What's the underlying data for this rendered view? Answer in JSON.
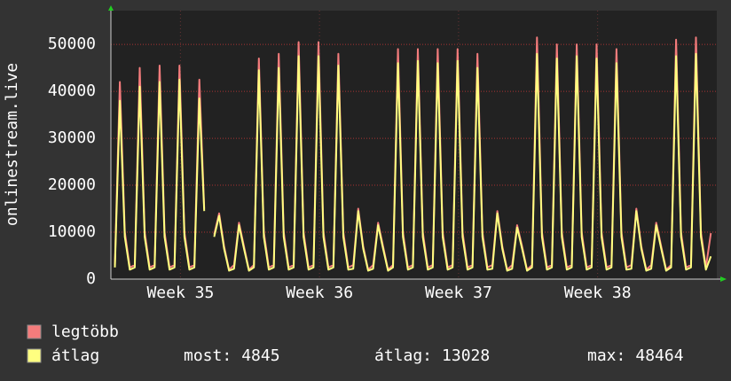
{
  "chart_data": {
    "type": "line",
    "y_label": "onlinestream.live",
    "xlim": [
      0,
      30.5
    ],
    "xticks": [
      {
        "value": 3.5,
        "label": "Week 35"
      },
      {
        "value": 10.5,
        "label": "Week 36"
      },
      {
        "value": 17.5,
        "label": "Week 37"
      },
      {
        "value": 24.5,
        "label": "Week 38"
      }
    ],
    "ylim": [
      0,
      57200
    ],
    "yticks": [
      0,
      10000,
      20000,
      30000,
      40000,
      50000
    ],
    "grid": true,
    "x": [
      0.2,
      0.45,
      0.7,
      0.95,
      1.2,
      1.45,
      1.7,
      1.95,
      2.2,
      2.45,
      2.7,
      2.95,
      3.2,
      3.45,
      3.7,
      3.95,
      4.2,
      4.45,
      4.7,
      4.95,
      5.2,
      5.45,
      5.7,
      5.95,
      6.2,
      6.45,
      6.7,
      6.95,
      7.2,
      7.45,
      7.7,
      7.95,
      8.2,
      8.45,
      8.7,
      8.95,
      9.2,
      9.45,
      9.7,
      9.95,
      10.2,
      10.45,
      10.7,
      10.95,
      11.2,
      11.45,
      11.7,
      11.95,
      12.2,
      12.45,
      12.7,
      12.95,
      13.2,
      13.45,
      13.7,
      13.95,
      14.2,
      14.45,
      14.7,
      14.95,
      15.2,
      15.45,
      15.7,
      15.95,
      16.2,
      16.45,
      16.7,
      16.95,
      17.2,
      17.45,
      17.7,
      17.95,
      18.2,
      18.45,
      18.7,
      18.95,
      19.2,
      19.45,
      19.7,
      19.95,
      20.2,
      20.45,
      20.7,
      20.95,
      21.2,
      21.45,
      21.7,
      21.95,
      22.2,
      22.45,
      22.7,
      22.95,
      23.2,
      23.45,
      23.7,
      23.95,
      24.2,
      24.45,
      24.7,
      24.95,
      25.2,
      25.45,
      25.7,
      25.95,
      26.2,
      26.45,
      26.7,
      26.95,
      27.2,
      27.45,
      27.7,
      27.95,
      28.2,
      28.45,
      28.7,
      28.95,
      29.2,
      29.45,
      29.7,
      29.95,
      30.2
    ],
    "series": [
      {
        "name": "legtöbb",
        "color": "#f47c7c",
        "values": [
          3000,
          42000,
          10000,
          2500,
          3000,
          45000,
          10000,
          2500,
          3000,
          45500,
          10000,
          2500,
          3000,
          45500,
          10000,
          2500,
          3000,
          42500,
          15000,
          null,
          9500,
          14000,
          7000,
          2000,
          3000,
          12000,
          7000,
          2000,
          3000,
          47000,
          10000,
          2500,
          3000,
          48000,
          10000,
          2500,
          3000,
          50500,
          10000,
          2500,
          3000,
          50500,
          10000,
          2500,
          3000,
          48000,
          10000,
          2500,
          3000,
          15000,
          7000,
          2000,
          3000,
          12000,
          7000,
          2000,
          3000,
          49000,
          10000,
          2500,
          3000,
          49000,
          10000,
          2500,
          3000,
          49000,
          10000,
          2500,
          3000,
          49000,
          10000,
          2500,
          3000,
          48000,
          10000,
          2500,
          3000,
          14500,
          7000,
          2000,
          3000,
          11500,
          7000,
          2000,
          3000,
          51500,
          10000,
          2500,
          3000,
          50000,
          10000,
          2500,
          3000,
          50000,
          10000,
          2500,
          3000,
          50000,
          10000,
          2500,
          3000,
          49000,
          10000,
          2500,
          3000,
          15000,
          7000,
          2000,
          3000,
          12000,
          7000,
          2000,
          3000,
          51000,
          10000,
          2500,
          3000,
          51500,
          10000,
          2500,
          9800
        ]
      },
      {
        "name": "átlag",
        "color": "#ffff80",
        "values": [
          2500,
          38000,
          9000,
          2000,
          2500,
          41000,
          9000,
          2000,
          2500,
          42000,
          9000,
          2000,
          2500,
          42500,
          9000,
          2000,
          2500,
          38500,
          14500,
          null,
          9000,
          13500,
          6500,
          1800,
          2200,
          11500,
          6500,
          1800,
          2500,
          44500,
          9000,
          2000,
          2500,
          45000,
          9000,
          2000,
          2500,
          47500,
          9000,
          2000,
          2500,
          47500,
          9000,
          2000,
          2500,
          45500,
          9000,
          2000,
          2200,
          14500,
          6500,
          1800,
          2200,
          11500,
          6500,
          1800,
          2500,
          46000,
          9000,
          2000,
          2500,
          46500,
          9000,
          2000,
          2500,
          46000,
          9000,
          2000,
          2500,
          46500,
          9000,
          2000,
          2500,
          45000,
          9000,
          2000,
          2200,
          14000,
          6500,
          1800,
          2200,
          11000,
          6500,
          1800,
          2500,
          48000,
          9000,
          2000,
          2500,
          47000,
          9000,
          2000,
          2500,
          47500,
          9000,
          2000,
          2500,
          47000,
          9000,
          2000,
          2500,
          46000,
          9000,
          2000,
          2200,
          14500,
          6500,
          1800,
          2200,
          11500,
          6500,
          1800,
          2500,
          47500,
          9000,
          2000,
          2500,
          48000,
          9000,
          2000,
          4845
        ]
      }
    ],
    "stats": [
      {
        "label": "most:",
        "value": 4845
      },
      {
        "label": "átlag:",
        "value": 13028
      },
      {
        "label": "max:",
        "value": 48464
      }
    ]
  }
}
